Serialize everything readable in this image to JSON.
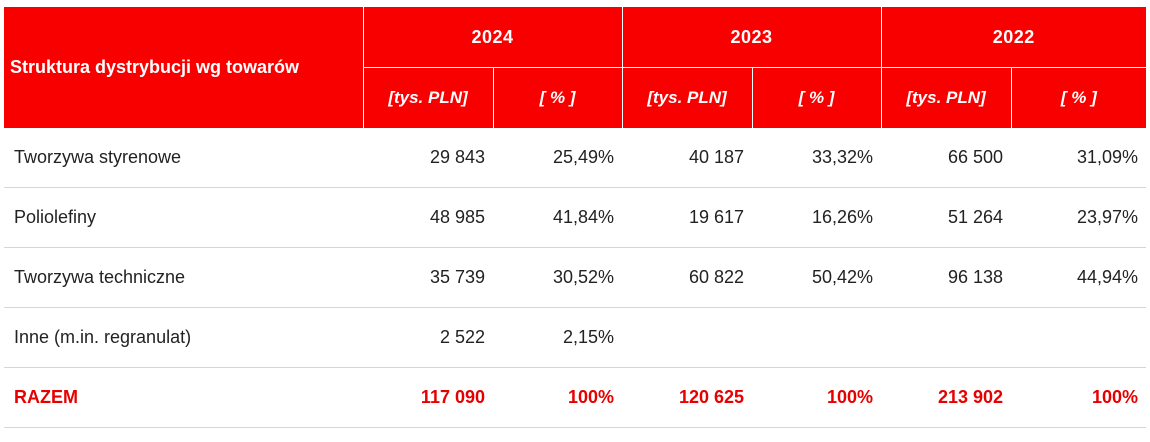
{
  "table": {
    "title": "Struktura dystrybucji wg towarów",
    "years": [
      "2024",
      "2023",
      "2022"
    ],
    "units": {
      "value": "[tys. PLN]",
      "percent": "[ % ]"
    },
    "rows": [
      {
        "label": "Tworzywa styrenowe",
        "cells": [
          "29 843",
          "25,49%",
          "40 187",
          "33,32%",
          "66 500",
          "31,09%"
        ]
      },
      {
        "label": "Poliolefiny",
        "cells": [
          "48 985",
          "41,84%",
          "19 617",
          "16,26%",
          "51 264",
          "23,97%"
        ]
      },
      {
        "label": "Tworzywa techniczne",
        "cells": [
          "35 739",
          "30,52%",
          "60 822",
          "50,42%",
          "96 138",
          "44,94%"
        ]
      },
      {
        "label": "Inne (m.in. regranulat)",
        "cells": [
          "2 522",
          "2,15%",
          "",
          "",
          "",
          ""
        ]
      }
    ],
    "total": {
      "label": "RAZEM",
      "cells": [
        "117 090",
        "100%",
        "120 625",
        "100%",
        "213 902",
        "100%"
      ]
    }
  },
  "colors": {
    "header_bg": "#f80000",
    "header_text": "#ffffff",
    "total_text": "#e60000",
    "row_divider": "#d6d6d6"
  }
}
